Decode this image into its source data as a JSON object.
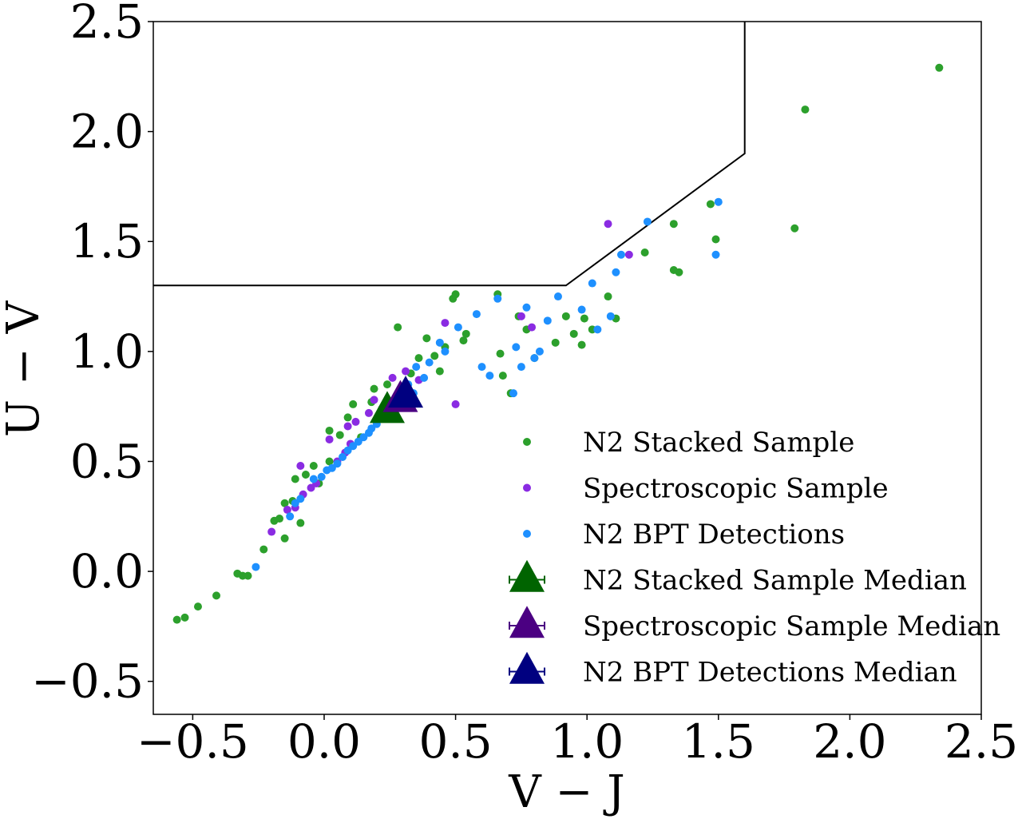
{
  "chart_data": {
    "type": "scatter",
    "title": "",
    "xlabel": "V − J",
    "ylabel": "U − V",
    "xlim": [
      -0.65,
      2.5
    ],
    "ylim": [
      -0.65,
      2.5
    ],
    "xticks": [
      -0.5,
      0.0,
      0.5,
      1.0,
      1.5,
      2.0,
      2.5
    ],
    "yticks": [
      -0.5,
      0.0,
      0.5,
      1.0,
      1.5,
      2.0,
      2.5
    ],
    "xtick_labels": [
      "−0.5",
      "0.0",
      "0.5",
      "1.0",
      "1.5",
      "2.0",
      "2.5"
    ],
    "ytick_labels": [
      "−0.5",
      "0.0",
      "0.5",
      "1.0",
      "1.5",
      "2.0",
      "2.5"
    ],
    "grid": false,
    "legend_position": "lower-right",
    "boundary_line": {
      "points": [
        [
          -0.65,
          1.3
        ],
        [
          0.92,
          1.3
        ],
        [
          1.6,
          1.9
        ],
        [
          1.6,
          2.5
        ]
      ],
      "color": "#000000"
    },
    "series": [
      {
        "name": "N2 Stacked Sample",
        "color": "#2ca02c",
        "marker": "circle",
        "points": [
          [
            -0.56,
            -0.22
          ],
          [
            -0.53,
            -0.21
          ],
          [
            -0.48,
            -0.16
          ],
          [
            -0.41,
            -0.11
          ],
          [
            -0.33,
            -0.01
          ],
          [
            -0.31,
            -0.02
          ],
          [
            -0.29,
            -0.02
          ],
          [
            -0.23,
            0.1
          ],
          [
            -0.19,
            0.23
          ],
          [
            -0.17,
            0.24
          ],
          [
            -0.15,
            0.15
          ],
          [
            -0.15,
            0.31
          ],
          [
            -0.12,
            0.32
          ],
          [
            -0.11,
            0.42
          ],
          [
            -0.09,
            0.22
          ],
          [
            -0.07,
            0.44
          ],
          [
            -0.04,
            0.48
          ],
          [
            -0.02,
            0.4
          ],
          [
            0.02,
            0.64
          ],
          [
            0.02,
            0.5
          ],
          [
            0.06,
            0.62
          ],
          [
            0.09,
            0.7
          ],
          [
            0.11,
            0.76
          ],
          [
            0.14,
            0.61
          ],
          [
            0.18,
            0.77
          ],
          [
            0.19,
            0.83
          ],
          [
            0.24,
            0.85
          ],
          [
            0.28,
            1.11
          ],
          [
            0.33,
            0.9
          ],
          [
            0.36,
            0.97
          ],
          [
            0.39,
            1.06
          ],
          [
            0.42,
            0.98
          ],
          [
            0.44,
            0.91
          ],
          [
            0.46,
            1.02
          ],
          [
            0.49,
            1.24
          ],
          [
            0.5,
            1.26
          ],
          [
            0.53,
            1.05
          ],
          [
            0.54,
            1.08
          ],
          [
            0.66,
            1.26
          ],
          [
            0.67,
            0.99
          ],
          [
            0.68,
            0.89
          ],
          [
            0.71,
            0.81
          ],
          [
            0.74,
            1.16
          ],
          [
            0.77,
            1.1
          ],
          [
            0.8,
            0.97
          ],
          [
            0.88,
            1.04
          ],
          [
            0.92,
            1.16
          ],
          [
            0.95,
            1.08
          ],
          [
            0.98,
            1.03
          ],
          [
            0.99,
            1.15
          ],
          [
            1.02,
            1.1
          ],
          [
            1.08,
            1.25
          ],
          [
            1.11,
            1.15
          ],
          [
            1.22,
            1.45
          ],
          [
            1.33,
            1.37
          ],
          [
            1.33,
            1.58
          ],
          [
            1.35,
            1.36
          ],
          [
            1.47,
            1.67
          ],
          [
            1.49,
            1.51
          ],
          [
            1.79,
            1.56
          ],
          [
            1.83,
            2.1
          ],
          [
            2.34,
            2.29
          ]
        ]
      },
      {
        "name": "Spectroscopic Sample",
        "color": "#8a2be2",
        "marker": "circle",
        "points": [
          [
            -0.2,
            0.18
          ],
          [
            -0.14,
            0.28
          ],
          [
            -0.11,
            0.29
          ],
          [
            -0.09,
            0.48
          ],
          [
            -0.08,
            0.35
          ],
          [
            -0.05,
            0.38
          ],
          [
            -0.03,
            0.4
          ],
          [
            0.02,
            0.6
          ],
          [
            0.05,
            0.5
          ],
          [
            0.08,
            0.54
          ],
          [
            0.1,
            0.58
          ],
          [
            0.09,
            0.66
          ],
          [
            0.12,
            0.68
          ],
          [
            0.17,
            0.72
          ],
          [
            0.19,
            0.78
          ],
          [
            0.22,
            0.74
          ],
          [
            0.26,
            0.88
          ],
          [
            0.31,
            0.91
          ],
          [
            0.36,
            0.87
          ],
          [
            0.46,
            1.13
          ],
          [
            0.5,
            0.76
          ],
          [
            0.75,
            1.16
          ],
          [
            0.79,
            1.11
          ],
          [
            1.08,
            1.58
          ],
          [
            1.16,
            1.44
          ]
        ]
      },
      {
        "name": "N2 BPT Detections",
        "color": "#1e90ff",
        "marker": "circle",
        "points": [
          [
            -0.26,
            0.02
          ],
          [
            -0.13,
            0.25
          ],
          [
            -0.11,
            0.31
          ],
          [
            -0.09,
            0.33
          ],
          [
            -0.04,
            0.42
          ],
          [
            -0.01,
            0.43
          ],
          [
            0.01,
            0.46
          ],
          [
            0.03,
            0.47
          ],
          [
            0.05,
            0.49
          ],
          [
            0.07,
            0.52
          ],
          [
            0.09,
            0.55
          ],
          [
            0.11,
            0.57
          ],
          [
            0.13,
            0.59
          ],
          [
            0.15,
            0.61
          ],
          [
            0.17,
            0.63
          ],
          [
            0.18,
            0.65
          ],
          [
            0.2,
            0.67
          ],
          [
            0.22,
            0.7
          ],
          [
            0.24,
            0.73
          ],
          [
            0.26,
            0.76
          ],
          [
            0.29,
            0.8
          ],
          [
            0.32,
            0.85
          ],
          [
            0.34,
            0.81
          ],
          [
            0.35,
            0.93
          ],
          [
            0.38,
            0.88
          ],
          [
            0.4,
            0.95
          ],
          [
            0.44,
            1.04
          ],
          [
            0.46,
            1.0
          ],
          [
            0.51,
            1.11
          ],
          [
            0.58,
            1.17
          ],
          [
            0.6,
            0.93
          ],
          [
            0.63,
            0.89
          ],
          [
            0.66,
            1.24
          ],
          [
            0.72,
            0.81
          ],
          [
            0.73,
            1.02
          ],
          [
            0.75,
            0.93
          ],
          [
            0.77,
            1.2
          ],
          [
            0.8,
            0.97
          ],
          [
            0.82,
            1.0
          ],
          [
            0.85,
            1.14
          ],
          [
            0.89,
            1.25
          ],
          [
            0.98,
            1.19
          ],
          [
            1.02,
            1.31
          ],
          [
            1.04,
            1.1
          ],
          [
            1.09,
            1.16
          ],
          [
            1.11,
            1.36
          ],
          [
            1.13,
            1.44
          ],
          [
            1.23,
            1.59
          ],
          [
            1.49,
            1.44
          ],
          [
            1.5,
            1.68
          ]
        ]
      }
    ],
    "medians": [
      {
        "name": "N2 Stacked Sample Median",
        "color": "#006400",
        "marker": "triangle",
        "x": 0.24,
        "y": 0.73
      },
      {
        "name": "Spectroscopic Sample Median",
        "color": "#4b0082",
        "marker": "triangle",
        "x": 0.29,
        "y": 0.78
      },
      {
        "name": "N2 BPT Detections Median",
        "color": "#000080",
        "marker": "triangle",
        "x": 0.31,
        "y": 0.8
      }
    ],
    "legend": [
      "N2 Stacked Sample",
      "Spectroscopic Sample",
      "N2 BPT Detections",
      "N2 Stacked Sample Median",
      "Spectroscopic Sample Median",
      "N2 BPT Detections Median"
    ]
  }
}
